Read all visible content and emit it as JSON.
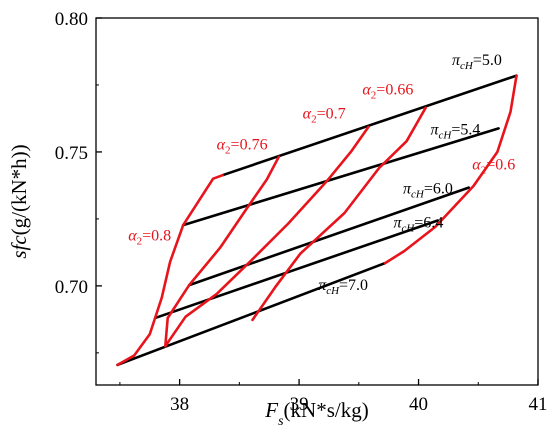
{
  "chart_data": {
    "type": "line",
    "title": "",
    "xlabel": {
      "var": "F",
      "sub": "s",
      "rest": "(kN*s/kg)"
    },
    "ylabel": {
      "var": "sfc",
      "rest": "(g/(kN*h))"
    },
    "xlim": [
      37.3,
      41.0
    ],
    "ylim": [
      0.663,
      0.8
    ],
    "xticks": [
      38,
      39,
      40,
      41
    ],
    "xtick_labels": [
      "38",
      "39",
      "40",
      "41"
    ],
    "yticks": [
      0.7,
      0.75,
      0.8
    ],
    "ytick_labels": [
      "0.70",
      "0.75",
      "0.80"
    ],
    "grid": false,
    "colors": {
      "pi_lines": "#000000",
      "alpha_lines": "#e8141c"
    },
    "pi_lines": [
      {
        "name": "5.0",
        "points": [
          [
            38.36,
            0.7413
          ],
          [
            40.82,
            0.7785
          ]
        ]
      },
      {
        "name": "5.4",
        "points": [
          [
            38.03,
            0.7227
          ],
          [
            40.67,
            0.7588
          ]
        ]
      },
      {
        "name": "6.0",
        "points": [
          [
            38.08,
            0.7003
          ],
          [
            40.42,
            0.7367
          ]
        ]
      },
      {
        "name": "6.4",
        "points": [
          [
            37.8,
            0.6881
          ],
          [
            40.16,
            0.7244
          ]
        ]
      },
      {
        "name": "7.0",
        "points": [
          [
            37.48,
            0.6705
          ],
          [
            39.72,
            0.7085
          ]
        ]
      }
    ],
    "alpha_lines": [
      {
        "name": "0.8",
        "points": [
          [
            38.36,
            0.7413
          ],
          [
            38.28,
            0.74
          ],
          [
            38.03,
            0.7227
          ],
          [
            37.92,
            0.709
          ],
          [
            37.85,
            0.6955
          ],
          [
            37.75,
            0.682
          ],
          [
            37.62,
            0.674
          ],
          [
            37.48,
            0.6705
          ]
        ]
      },
      {
        "name": "0.76",
        "points": [
          [
            38.83,
            0.7482
          ],
          [
            38.73,
            0.7397
          ],
          [
            38.55,
            0.7281
          ],
          [
            38.34,
            0.7143
          ],
          [
            38.08,
            0.7003
          ],
          [
            37.9,
            0.688
          ],
          [
            37.88,
            0.6775
          ]
        ]
      },
      {
        "name": "0.7",
        "points": [
          [
            39.58,
            0.7593
          ],
          [
            39.44,
            0.7504
          ],
          [
            39.23,
            0.739
          ],
          [
            38.91,
            0.7233
          ],
          [
            38.6,
            0.7095
          ],
          [
            38.31,
            0.697
          ],
          [
            38.05,
            0.6885
          ],
          [
            37.88,
            0.6775
          ]
        ]
      },
      {
        "name": "0.66",
        "points": [
          [
            40.06,
            0.7665
          ],
          [
            39.9,
            0.754
          ],
          [
            39.67,
            0.744
          ],
          [
            39.38,
            0.7272
          ],
          [
            39.01,
            0.712
          ],
          [
            38.8,
            0.6995
          ],
          [
            38.61,
            0.6873
          ]
        ]
      },
      {
        "name": "0.6",
        "points": [
          [
            40.82,
            0.7785
          ],
          [
            40.77,
            0.765
          ],
          [
            40.66,
            0.75
          ],
          [
            40.46,
            0.7373
          ],
          [
            40.14,
            0.722
          ],
          [
            39.88,
            0.713
          ],
          [
            39.72,
            0.7085
          ]
        ]
      }
    ],
    "annotations": [
      {
        "text": "π",
        "sub": "cH",
        "value": "=5.0",
        "color": "#000000",
        "x": 40.28,
        "y": 0.7825
      },
      {
        "text": "π",
        "sub": "cH",
        "value": "=5.4",
        "color": "#000000",
        "x": 40.1,
        "y": 0.7565
      },
      {
        "text": "π",
        "sub": "cH",
        "value": "=6.0",
        "color": "#000000",
        "x": 39.87,
        "y": 0.7345
      },
      {
        "text": "π",
        "sub": "cH",
        "value": "=6.4",
        "color": "#000000",
        "x": 39.79,
        "y": 0.7218
      },
      {
        "text": "π",
        "sub": "cH",
        "value": "=7.0",
        "color": "#000000",
        "x": 39.16,
        "y": 0.6985
      },
      {
        "text": "α",
        "sub": "2",
        "value": "=0.8",
        "color": "#e8141c",
        "x": 37.57,
        "y": 0.717
      },
      {
        "text": "α",
        "sub": "2",
        "value": "=0.76",
        "color": "#e8141c",
        "x": 38.31,
        "y": 0.751
      },
      {
        "text": "α",
        "sub": "2",
        "value": "=0.7",
        "color": "#e8141c",
        "x": 39.03,
        "y": 0.7625
      },
      {
        "text": "α",
        "sub": "2",
        "value": "=0.66",
        "color": "#e8141c",
        "x": 39.53,
        "y": 0.7715
      },
      {
        "text": "α",
        "sub": "2",
        "value": "=0.6",
        "color": "#e8141c",
        "x": 40.45,
        "y": 0.7435
      }
    ]
  }
}
